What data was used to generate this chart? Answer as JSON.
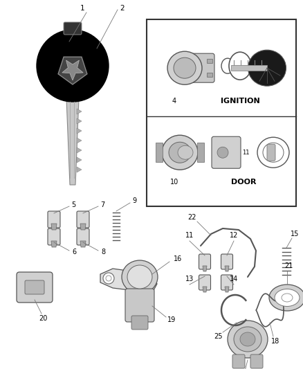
{
  "bg_color": "#ffffff",
  "fig_width": 4.38,
  "fig_height": 5.33,
  "dpi": 100,
  "gray": "#555555",
  "dark": "#222222",
  "light_gray": "#cccccc",
  "med_gray": "#999999"
}
